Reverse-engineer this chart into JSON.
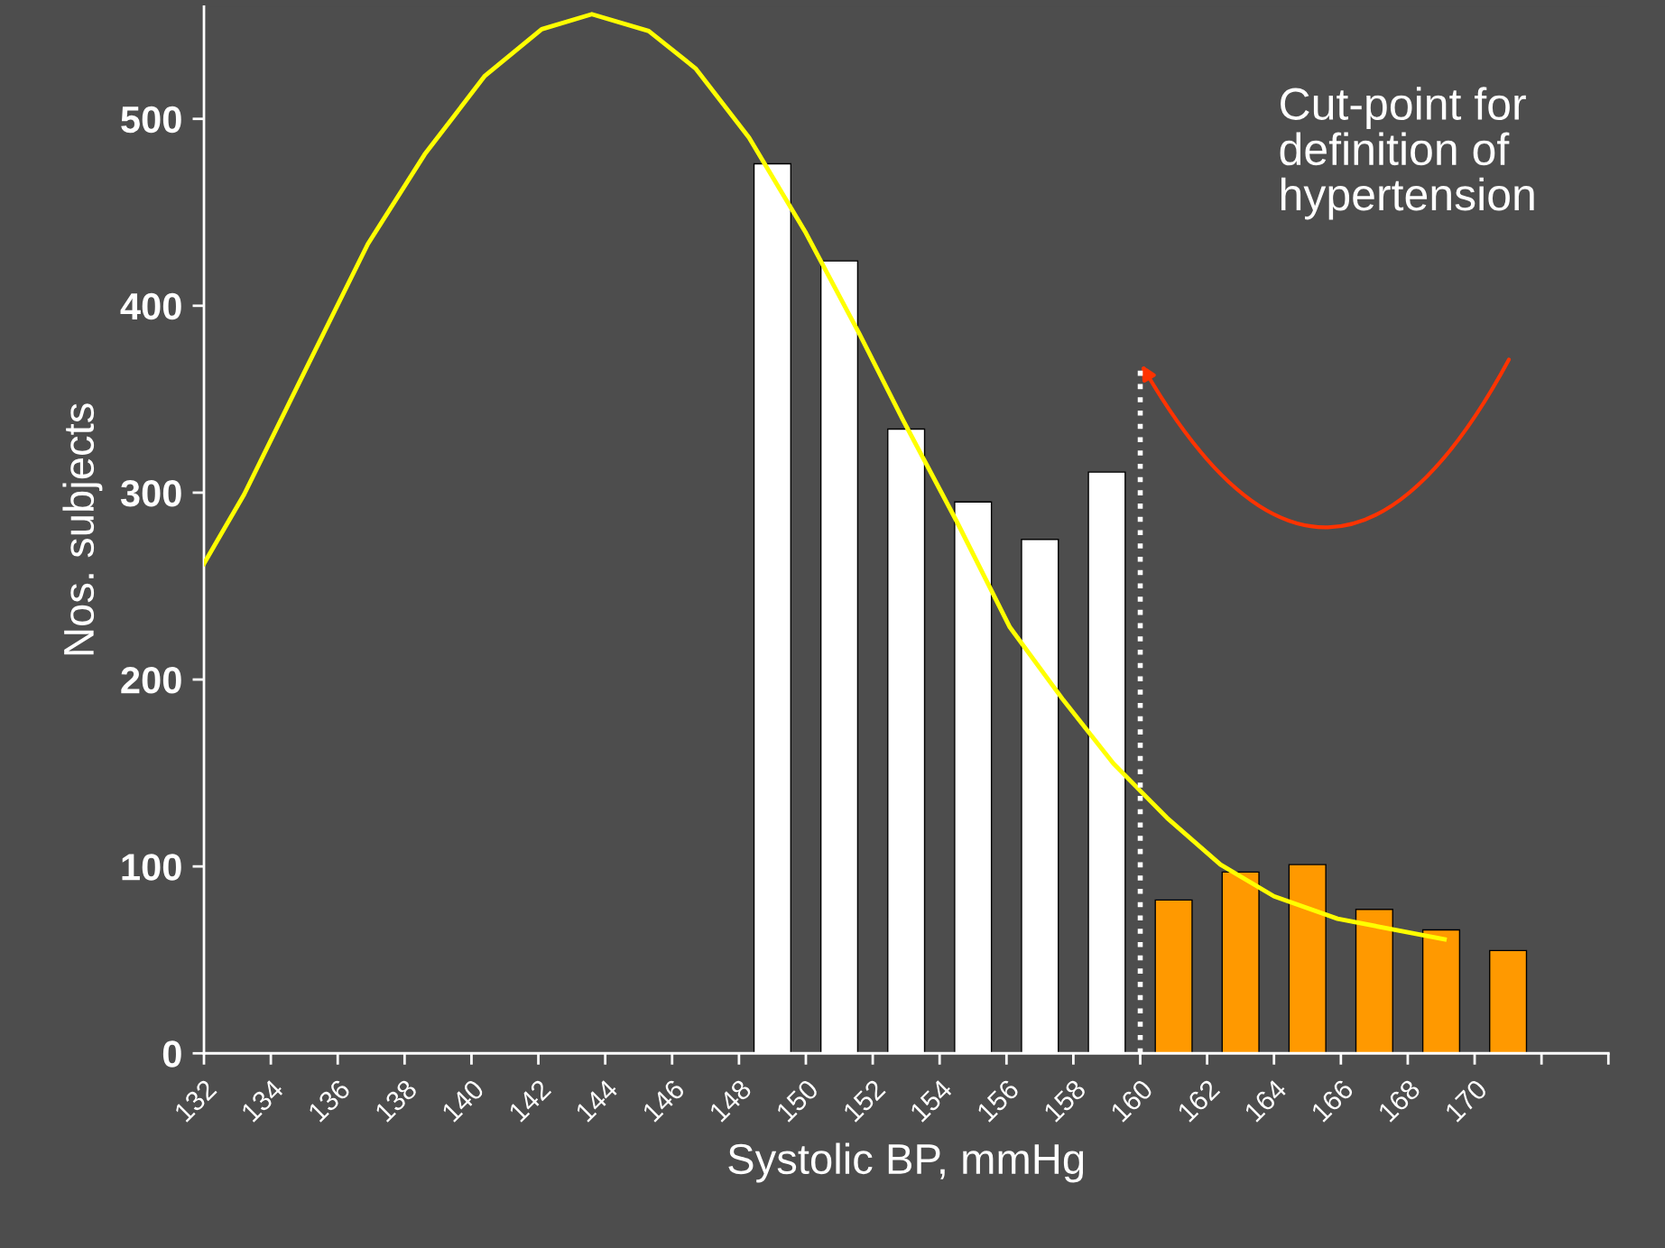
{
  "chart_data": {
    "type": "bar",
    "xlabel": "Systolic BP, mmHg",
    "ylabel": "Nos. subjects",
    "x": [
      149,
      151,
      153,
      155,
      157,
      159,
      161,
      163,
      165,
      167,
      169,
      171
    ],
    "values": [
      476,
      424,
      334,
      295,
      275,
      311,
      82,
      97,
      101,
      77,
      66,
      55
    ],
    "colors": [
      "#ffffff",
      "#ffffff",
      "#ffffff",
      "#ffffff",
      "#ffffff",
      "#ffffff",
      "#ff9900",
      "#ff9900",
      "#ff9900",
      "#ff9900",
      "#ff9900",
      "#ff9900"
    ],
    "series": [
      {
        "type": "line",
        "color": "#ffff00",
        "x": [
          132,
          133.2,
          135.1,
          136.9,
          138.6,
          140.4,
          142.1,
          143.6,
          145.3,
          146.7,
          148.3,
          150.0,
          151.6,
          152.9,
          154.5,
          156.1,
          157.7,
          159.2,
          160.8,
          162.4,
          164.0,
          165.9,
          169.1
        ],
        "values": [
          262,
          299,
          368,
          433,
          481,
          523,
          548,
          556,
          547,
          527,
          490,
          439,
          385,
          339,
          285,
          228,
          189,
          155,
          126,
          101,
          84,
          72,
          61
        ]
      }
    ],
    "xlim": [
      132,
      174
    ],
    "xticks": [
      132,
      134,
      136,
      138,
      140,
      142,
      144,
      146,
      148,
      150,
      152,
      154,
      156,
      158,
      160,
      162,
      164,
      166,
      168,
      170,
      {
        "value": 172,
        "label": null
      },
      {
        "value": 174,
        "label": null
      }
    ],
    "ylim": [
      0,
      560
    ],
    "yticks": [
      0,
      100,
      200,
      300,
      400,
      500
    ],
    "ref_lines": [
      {
        "axis": "x",
        "value": 160,
        "color": "#ffffff",
        "line_style": "dotted",
        "label": "Cut-point for\ndefinition of\nhypertension"
      }
    ],
    "grid": false
  }
}
